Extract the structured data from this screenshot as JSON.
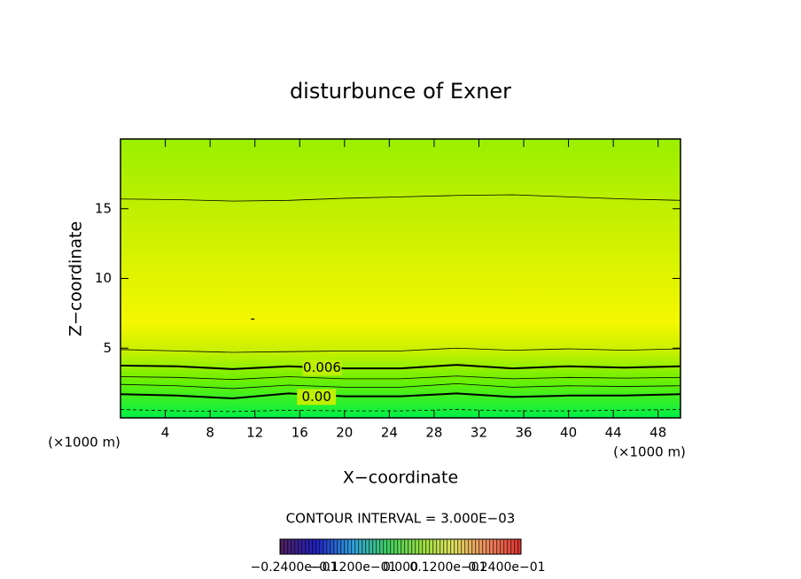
{
  "chart_data": {
    "type": "contour",
    "title": "disturbunce of Exner",
    "xlabel": "X−coordinate",
    "ylabel": "Z−coordinate",
    "x_unit": "(×1000 m)",
    "y_unit": "(×1000 m)",
    "xlim": [
      0,
      50
    ],
    "ylim": [
      0,
      20
    ],
    "xticks": [
      4,
      8,
      12,
      16,
      20,
      24,
      28,
      32,
      36,
      40,
      44,
      48
    ],
    "yticks": [
      5,
      10,
      15
    ],
    "contour_x": [
      0,
      5,
      10,
      15,
      20,
      25,
      30,
      35,
      40,
      45,
      50
    ],
    "contours": [
      {
        "style": "thin",
        "z": [
          15.7,
          15.65,
          15.55,
          15.6,
          15.75,
          15.85,
          15.95,
          16.0,
          15.85,
          15.7,
          15.6
        ]
      },
      {
        "style": "thin",
        "z": [
          4.9,
          4.8,
          4.7,
          4.75,
          4.8,
          4.8,
          5.0,
          4.85,
          4.95,
          4.85,
          4.95
        ]
      },
      {
        "style": "thick",
        "z": [
          3.75,
          3.7,
          3.5,
          3.7,
          3.55,
          3.55,
          3.8,
          3.55,
          3.7,
          3.6,
          3.7
        ]
      },
      {
        "style": "thin",
        "z": [
          2.95,
          2.9,
          2.75,
          2.95,
          2.8,
          2.8,
          3.0,
          2.8,
          2.9,
          2.85,
          2.9
        ]
      },
      {
        "style": "thin",
        "z": [
          2.4,
          2.3,
          2.1,
          2.35,
          2.2,
          2.2,
          2.45,
          2.2,
          2.3,
          2.25,
          2.3
        ]
      },
      {
        "style": "thick",
        "z": [
          1.7,
          1.6,
          1.4,
          1.75,
          1.55,
          1.55,
          1.75,
          1.5,
          1.6,
          1.6,
          1.7
        ]
      },
      {
        "style": "dashed",
        "z": [
          0.6,
          0.5,
          0.45,
          0.55,
          0.5,
          0.5,
          0.6,
          0.5,
          0.5,
          0.55,
          0.6
        ]
      }
    ],
    "contour_labels": [
      {
        "text": "0.006",
        "x": 18,
        "z": 3.6
      },
      {
        "text": "0.00",
        "x": 17.5,
        "z": 1.5
      },
      {
        "text": "-",
        "x": 11.8,
        "z": 7.1
      }
    ],
    "contour_interval": "CONTOUR INTERVAL = 3.000E−03",
    "colorbar_labels": [
      "−0.2400e−01",
      "−0.1200e−01",
      "0.000",
      "0.1200e−01",
      "0.2400e−01"
    ]
  }
}
